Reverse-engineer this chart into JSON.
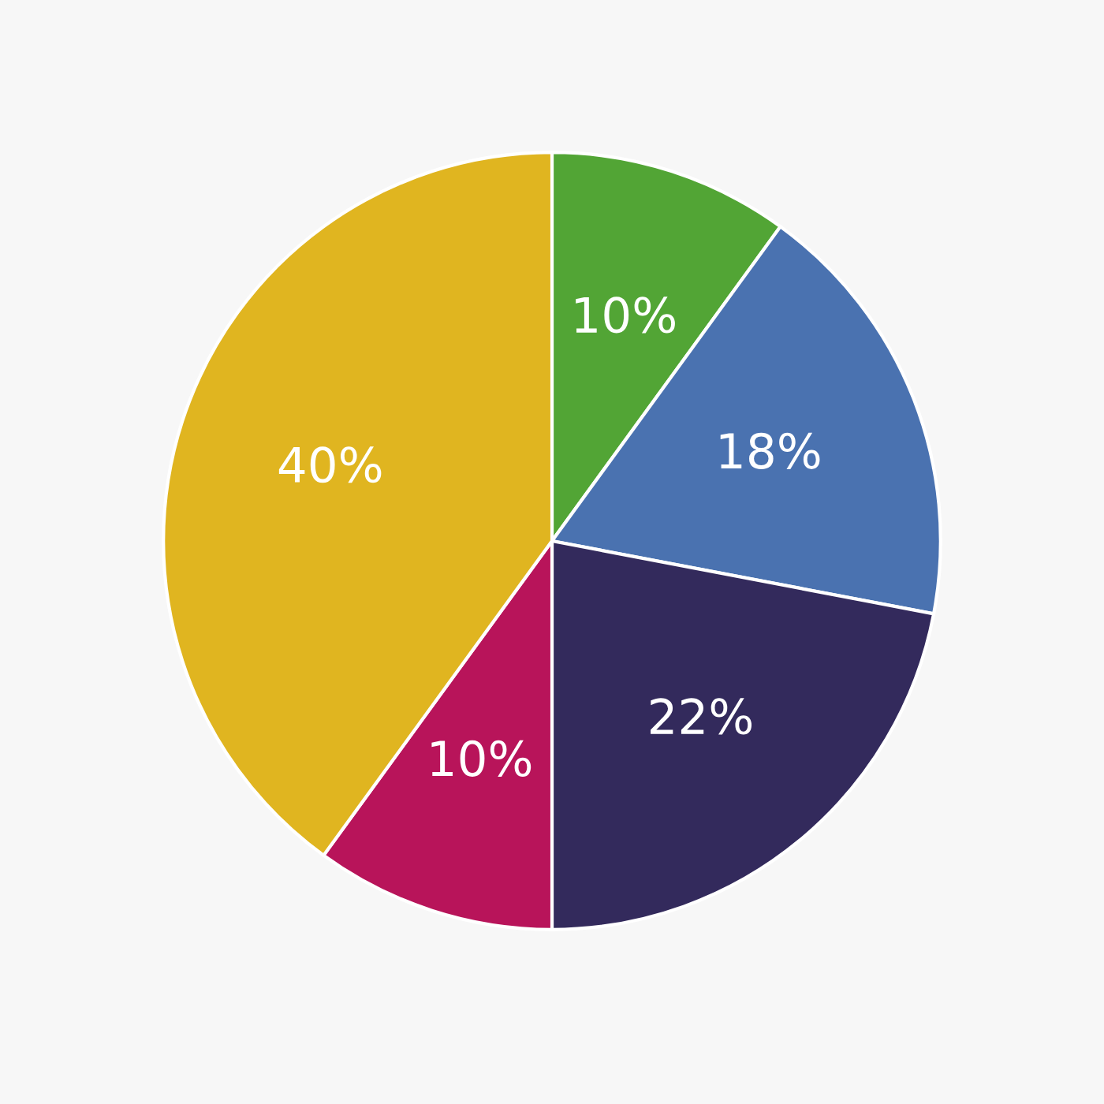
{
  "chart_data": {
    "type": "pie",
    "categories": [
      null,
      null,
      null,
      null,
      null
    ],
    "values": [
      10,
      18,
      22,
      10,
      40
    ],
    "colors": [
      "#52a535",
      "#4a72b0",
      "#332a5c",
      "#b8145a",
      "#e0b520"
    ],
    "value_labels": [
      "10%",
      "18%",
      "22%",
      "10%",
      "40%"
    ]
  }
}
